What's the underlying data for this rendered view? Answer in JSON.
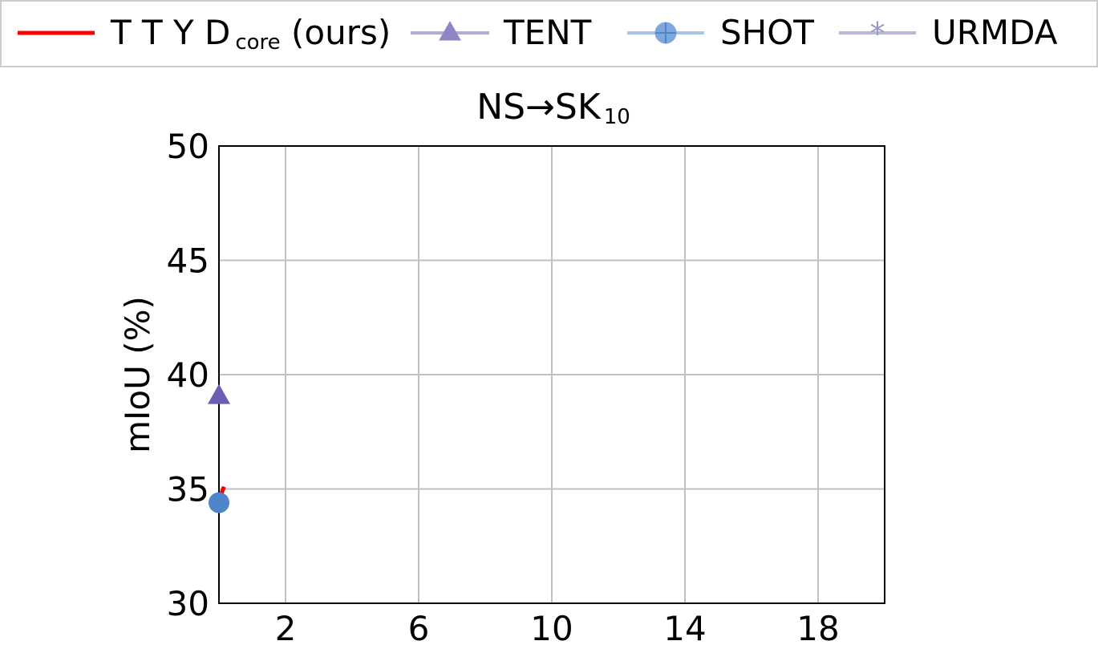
{
  "chart_data": {
    "type": "line",
    "title": {
      "main": "NS→SK",
      "subscript": "10"
    },
    "xlabel": "",
    "ylabel": "mIoU (%)",
    "xlim": [
      0,
      20
    ],
    "ylim": [
      30,
      50
    ],
    "xticks": [
      2,
      6,
      10,
      14,
      18
    ],
    "yticks": [
      30,
      35,
      40,
      45,
      50
    ],
    "grid": true,
    "legend_position": "top",
    "series": [
      {
        "name": "T T Y D",
        "name_subscript": "core",
        "name_suffix": " (ours)",
        "color": "#ff0000",
        "marker": "none",
        "x": [
          0,
          0.15
        ],
        "y": [
          34.5,
          35.1
        ]
      },
      {
        "name": "TENT",
        "color": "#6a5fb2",
        "marker": "triangle",
        "x": [
          0
        ],
        "y": [
          39.1
        ]
      },
      {
        "name": "SHOT",
        "color": "#4f86c9",
        "marker": "circle-plus",
        "x": [
          0
        ],
        "y": [
          34.4
        ]
      },
      {
        "name": "URMDA",
        "color": "#9a98c2",
        "marker": "star",
        "x": [],
        "y": []
      }
    ]
  }
}
